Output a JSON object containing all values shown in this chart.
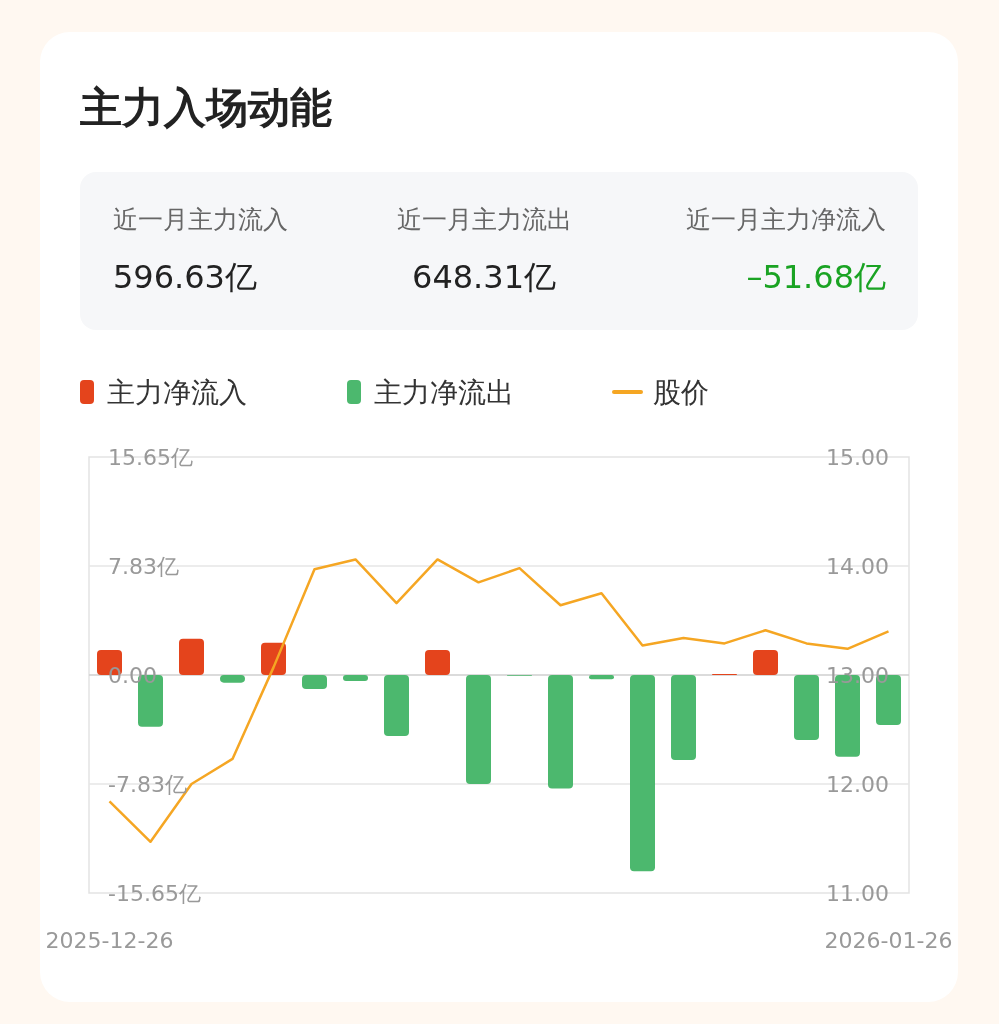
{
  "chart_data": {
    "type": "bar",
    "title": "主力入场动能",
    "annotations": [
      "近一月主力流入",
      "596.63亿",
      "近一月主力流出",
      "648.31亿",
      "近一月主力净流入",
      "–51.68亿"
    ],
    "categories": [
      "2025-12-26",
      null,
      null,
      null,
      null,
      null,
      null,
      null,
      null,
      null,
      null,
      null,
      null,
      null,
      null,
      null,
      null,
      null,
      null,
      "2026-01-26"
    ],
    "series": [
      {
        "name": "主力净流入",
        "color": "#e4441c",
        "values": [
          1.8,
          null,
          2.61,
          null,
          2.32,
          null,
          null,
          null,
          1.8,
          null,
          null,
          null,
          null,
          null,
          null,
          0.07,
          1.8,
          null,
          null,
          null
        ]
      },
      {
        "name": "主力净流出",
        "color": "#4cb86e",
        "values": [
          null,
          -3.71,
          null,
          -0.55,
          null,
          -1.0,
          -0.43,
          -4.38,
          null,
          -7.83,
          -0.05,
          -8.14,
          -0.31,
          -14.08,
          -6.1,
          null,
          null,
          -4.67,
          -5.87,
          -3.59
        ]
      },
      {
        "name": "股价",
        "type": "line",
        "axis": "y2",
        "color": "#f5a623",
        "values": [
          11.84,
          11.47,
          12.0,
          12.23,
          13.07,
          13.97,
          14.06,
          13.66,
          14.06,
          13.85,
          13.98,
          13.64,
          13.75,
          13.27,
          13.34,
          13.29,
          13.41,
          13.29,
          13.24,
          13.4
        ]
      }
    ],
    "stacked": true,
    "ylim": [
      -15.65,
      15.65
    ],
    "yticks": [
      {
        "value": 15.65,
        "label": "15.65亿"
      },
      {
        "value": 7.83,
        "label": "7.83亿"
      },
      {
        "value": 0,
        "label": "0.00"
      },
      {
        "value": -7.83,
        "label": "-7.83亿"
      },
      {
        "value": -15.65,
        "label": "-15.65亿"
      }
    ],
    "y2lim": [
      11,
      15
    ],
    "y2ticks": [
      {
        "value": 15,
        "label": "15.00"
      },
      {
        "value": 14,
        "label": "14.00"
      },
      {
        "value": 13,
        "label": "13.00"
      },
      {
        "value": 12,
        "label": "12.00"
      },
      {
        "value": 11,
        "label": "11.00"
      }
    ],
    "grid": "y",
    "legend": "top"
  }
}
